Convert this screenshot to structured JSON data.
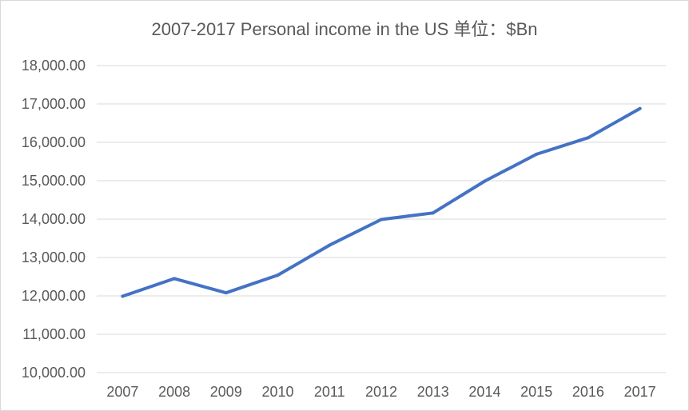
{
  "chart_data": {
    "type": "line",
    "title": "2007-2017 Personal income in the US 单位：$Bn",
    "xlabel": "",
    "ylabel": "",
    "categories": [
      "2007",
      "2008",
      "2009",
      "2010",
      "2011",
      "2012",
      "2013",
      "2014",
      "2015",
      "2016",
      "2017"
    ],
    "series": [
      {
        "values": [
          11990,
          12450,
          12080,
          12540,
          13320,
          13990,
          14160,
          14990,
          15690,
          16120,
          16880
        ],
        "color": "#4472c4"
      }
    ],
    "ylim": [
      10000,
      18000
    ],
    "yticks": [
      10000,
      11000,
      12000,
      13000,
      14000,
      15000,
      16000,
      17000,
      18000
    ],
    "ytick_labels": [
      "10,000.00",
      "11,000.00",
      "12,000.00",
      "13,000.00",
      "14,000.00",
      "15,000.00",
      "16,000.00",
      "17,000.00",
      "18,000.00"
    ],
    "grid": true,
    "legend": "none"
  }
}
